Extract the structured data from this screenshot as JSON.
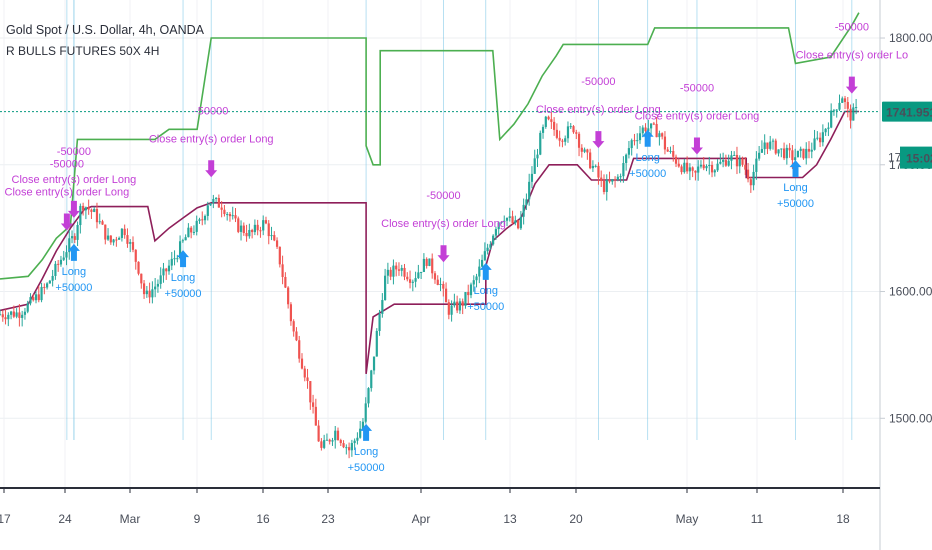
{
  "header": {
    "symbol": "Gold Spot / U.S. Dollar, 4h, OANDA",
    "strategy": "R BULLS FUTURES 50X 4H"
  },
  "colors": {
    "up": "#26a69a",
    "down": "#ef5350",
    "stop_long": "#8e1f5a",
    "stop_upper": "#4caf50",
    "signal_close": "#c33fd6",
    "signal_long": "#2196f3",
    "price_line": "#089981",
    "axis_text": "#4a4f5a"
  },
  "price_axis": {
    "ticks": [
      "1800.000",
      "1700.000",
      "1600.000",
      "1500.000"
    ],
    "last_price": "1741.951",
    "countdown_prefix": "17",
    "countdown": "15:02"
  },
  "time_axis": {
    "ticks": [
      "17",
      "24",
      "Mar",
      "9",
      "16",
      "23",
      "Apr",
      "13",
      "20",
      "May",
      "11",
      "18"
    ]
  },
  "chart_data": {
    "type": "candlestick",
    "title": "Gold Spot / U.S. Dollar, 4h, OANDA",
    "ylim": [
      1445,
      1830
    ],
    "x_ticks": [
      "17",
      "24",
      "Mar",
      "9",
      "16",
      "23",
      "Apr",
      "13",
      "20",
      "May",
      "11",
      "18"
    ],
    "price_path": [
      {
        "x": 0,
        "y": 1582
      },
      {
        "x": 3,
        "y": 1583
      },
      {
        "x": 5,
        "y": 1592
      },
      {
        "x": 7,
        "y": 1604
      },
      {
        "x": 9,
        "y": 1625
      },
      {
        "x": 11,
        "y": 1645
      },
      {
        "x": 12,
        "y": 1670
      },
      {
        "x": 14,
        "y": 1660
      },
      {
        "x": 16,
        "y": 1638
      },
      {
        "x": 18,
        "y": 1650
      },
      {
        "x": 20,
        "y": 1620
      },
      {
        "x": 21,
        "y": 1595
      },
      {
        "x": 23,
        "y": 1608
      },
      {
        "x": 25,
        "y": 1625
      },
      {
        "x": 27,
        "y": 1645
      },
      {
        "x": 29,
        "y": 1655
      },
      {
        "x": 30,
        "y": 1672
      },
      {
        "x": 32,
        "y": 1668
      },
      {
        "x": 34,
        "y": 1652
      },
      {
        "x": 36,
        "y": 1645
      },
      {
        "x": 38,
        "y": 1655
      },
      {
        "x": 40,
        "y": 1628
      },
      {
        "x": 41,
        "y": 1600
      },
      {
        "x": 42,
        "y": 1570
      },
      {
        "x": 44,
        "y": 1530
      },
      {
        "x": 45,
        "y": 1500
      },
      {
        "x": 46,
        "y": 1475
      },
      {
        "x": 48,
        "y": 1490
      },
      {
        "x": 50,
        "y": 1475
      },
      {
        "x": 51,
        "y": 1485
      },
      {
        "x": 52,
        "y": 1498
      },
      {
        "x": 53,
        "y": 1530
      },
      {
        "x": 54,
        "y": 1570
      },
      {
        "x": 55,
        "y": 1610
      },
      {
        "x": 57,
        "y": 1620
      },
      {
        "x": 59,
        "y": 1610
      },
      {
        "x": 61,
        "y": 1625
      },
      {
        "x": 63,
        "y": 1605
      },
      {
        "x": 64,
        "y": 1585
      },
      {
        "x": 66,
        "y": 1590
      },
      {
        "x": 68,
        "y": 1610
      },
      {
        "x": 69,
        "y": 1625
      },
      {
        "x": 71,
        "y": 1655
      },
      {
        "x": 72,
        "y": 1660
      },
      {
        "x": 74,
        "y": 1650
      },
      {
        "x": 75,
        "y": 1670
      },
      {
        "x": 76,
        "y": 1695
      },
      {
        "x": 77,
        "y": 1718
      },
      {
        "x": 78,
        "y": 1735
      },
      {
        "x": 80,
        "y": 1722
      },
      {
        "x": 82,
        "y": 1730
      },
      {
        "x": 83,
        "y": 1712
      },
      {
        "x": 85,
        "y": 1695
      },
      {
        "x": 86,
        "y": 1682
      },
      {
        "x": 88,
        "y": 1688
      },
      {
        "x": 89,
        "y": 1700
      },
      {
        "x": 90,
        "y": 1718
      },
      {
        "x": 92,
        "y": 1730
      },
      {
        "x": 94,
        "y": 1726
      },
      {
        "x": 95,
        "y": 1712
      },
      {
        "x": 97,
        "y": 1700
      },
      {
        "x": 99,
        "y": 1690
      },
      {
        "x": 100,
        "y": 1702
      },
      {
        "x": 102,
        "y": 1698
      },
      {
        "x": 104,
        "y": 1706
      },
      {
        "x": 106,
        "y": 1700
      },
      {
        "x": 107,
        "y": 1688
      },
      {
        "x": 109,
        "y": 1718
      },
      {
        "x": 111,
        "y": 1712
      },
      {
        "x": 113,
        "y": 1706
      },
      {
        "x": 115,
        "y": 1710
      },
      {
        "x": 117,
        "y": 1722
      },
      {
        "x": 119,
        "y": 1745
      },
      {
        "x": 120,
        "y": 1755
      },
      {
        "x": 121,
        "y": 1738
      },
      {
        "x": 122,
        "y": 1742
      }
    ],
    "series": [
      {
        "name": "",
        "points": [
          [
            0,
            1585
          ],
          [
            4,
            1590
          ],
          [
            6,
            1610
          ],
          [
            8,
            1632
          ],
          [
            10,
            1650
          ],
          [
            12,
            1665
          ],
          [
            13,
            1667
          ],
          [
            21,
            1667
          ],
          [
            22,
            1640
          ],
          [
            24,
            1650
          ],
          [
            26,
            1658
          ],
          [
            28,
            1666
          ],
          [
            30,
            1670
          ],
          [
            52,
            1670
          ],
          [
            52,
            1535
          ],
          [
            53,
            1580
          ],
          [
            56,
            1590
          ],
          [
            69,
            1590
          ],
          [
            69,
            1620
          ],
          [
            70,
            1640
          ],
          [
            72,
            1650
          ],
          [
            74,
            1658
          ],
          [
            76,
            1685
          ],
          [
            78,
            1700
          ],
          [
            82,
            1700
          ],
          [
            84,
            1688
          ],
          [
            89,
            1688
          ],
          [
            90,
            1705
          ],
          [
            106,
            1705
          ],
          [
            106,
            1690
          ],
          [
            114,
            1690
          ],
          [
            116,
            1700
          ],
          [
            118,
            1720
          ],
          [
            120,
            1742
          ],
          [
            122,
            1742
          ]
        ]
      },
      {
        "name": "",
        "points": [
          [
            0,
            1610
          ],
          [
            4,
            1612
          ],
          [
            6,
            1625
          ],
          [
            8,
            1642
          ],
          [
            10,
            1652
          ],
          [
            11,
            1720
          ],
          [
            22,
            1720
          ],
          [
            24,
            1728
          ],
          [
            28,
            1728
          ],
          [
            30,
            1800
          ],
          [
            52,
            1800
          ],
          [
            52,
            1715
          ],
          [
            53,
            1700
          ],
          [
            54,
            1700
          ],
          [
            54,
            1790
          ],
          [
            70,
            1790
          ],
          [
            71,
            1720
          ],
          [
            73,
            1732
          ],
          [
            75,
            1748
          ],
          [
            77,
            1770
          ],
          [
            79,
            1786
          ],
          [
            80,
            1795
          ],
          [
            92,
            1795
          ],
          [
            93,
            1808
          ],
          [
            112,
            1808
          ],
          [
            113,
            1780
          ],
          [
            118,
            1785
          ],
          [
            121,
            1810
          ],
          [
            122,
            1820
          ]
        ]
      }
    ],
    "signals": [
      {
        "kind": "close",
        "x": 9.5,
        "label": "Close entry(s) order Long",
        "pnl": "-50000"
      },
      {
        "kind": "close",
        "x": 10.5,
        "label": "Close entry(s) order Long",
        "pnl": "-50000"
      },
      {
        "kind": "long",
        "x": 10.5,
        "label": "Long",
        "pnl": "+50000"
      },
      {
        "kind": "close",
        "x": 30,
        "label": "Close entry(s) order Long",
        "pnl": "-50000"
      },
      {
        "kind": "long",
        "x": 26,
        "label": "Long",
        "pnl": "+50000"
      },
      {
        "kind": "long",
        "x": 52,
        "label": "Long",
        "pnl": "+50000"
      },
      {
        "kind": "close",
        "x": 63,
        "label": "Close entry(s) order Long",
        "pnl": "-50000"
      },
      {
        "kind": "long",
        "x": 69,
        "label": "Long",
        "pnl": "+50000"
      },
      {
        "kind": "close",
        "x": 85,
        "label": "Close entry(s) order Long",
        "pnl": "-50000"
      },
      {
        "kind": "long",
        "x": 92,
        "label": "Long",
        "pnl": "+50000"
      },
      {
        "kind": "close",
        "x": 99,
        "label": "Close entry(s) order Long",
        "pnl": "-50000"
      },
      {
        "kind": "long",
        "x": 113,
        "label": "Long",
        "pnl": "+50000"
      },
      {
        "kind": "close",
        "x": 121,
        "label": "Close entry(s) order Lo",
        "pnl": "-50000"
      }
    ]
  }
}
